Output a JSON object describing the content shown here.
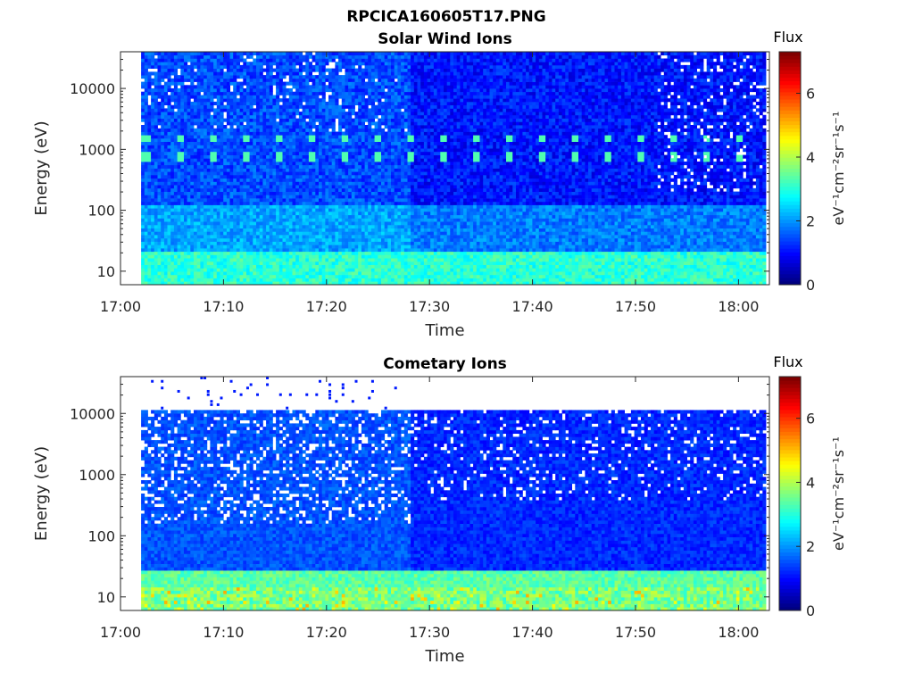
{
  "figure": {
    "title": "RPCICA160605T17.PNG"
  },
  "chart_data": [
    {
      "type": "heatmap",
      "title": "Solar Wind Ions",
      "xlabel": "Time",
      "ylabel": "Energy (eV)",
      "x_ticks": [
        "17:00",
        "17:10",
        "17:20",
        "17:30",
        "17:40",
        "17:50",
        "18:00"
      ],
      "x_range": [
        "17:00",
        "18:03"
      ],
      "y_scale": "log",
      "y_ticks": [
        10,
        100,
        1000,
        10000
      ],
      "y_range": [
        6,
        40000
      ],
      "data_start": "17:02",
      "colorbar": {
        "label": "Flux",
        "units": "eV⁻¹cm⁻²sr⁻¹s⁻¹",
        "ticks": [
          0,
          2,
          4,
          6
        ],
        "range": [
          0,
          7.3
        ],
        "colormap": "jet"
      },
      "features": {
        "proton_band_eV": 750,
        "alpha_band_eV": 1500,
        "band_level": 3.3,
        "pulse_period_min": 3.2,
        "low_energy_level": 2.6,
        "background_level": 1.2,
        "transition_time": "17:28"
      }
    },
    {
      "type": "heatmap",
      "title": "Cometary Ions",
      "xlabel": "Time",
      "ylabel": "Energy (eV)",
      "x_ticks": [
        "17:00",
        "17:10",
        "17:20",
        "17:30",
        "17:40",
        "17:50",
        "18:00"
      ],
      "x_range": [
        "17:00",
        "18:03"
      ],
      "y_scale": "log",
      "y_ticks": [
        10,
        100,
        1000,
        10000
      ],
      "y_range": [
        6,
        40000
      ],
      "data_start": "17:02",
      "colorbar": {
        "label": "Flux",
        "units": "eV⁻¹cm⁻²sr⁻¹s⁻¹",
        "ticks": [
          0,
          2,
          4,
          6
        ],
        "range": [
          0,
          7.3
        ],
        "colormap": "jet"
      },
      "features": {
        "energy_cutoff_eV": 11000,
        "low_energy_level": 3.0,
        "low_energy_peak": 4.2,
        "background_level": 1.0,
        "transition_time": "17:28"
      }
    }
  ]
}
